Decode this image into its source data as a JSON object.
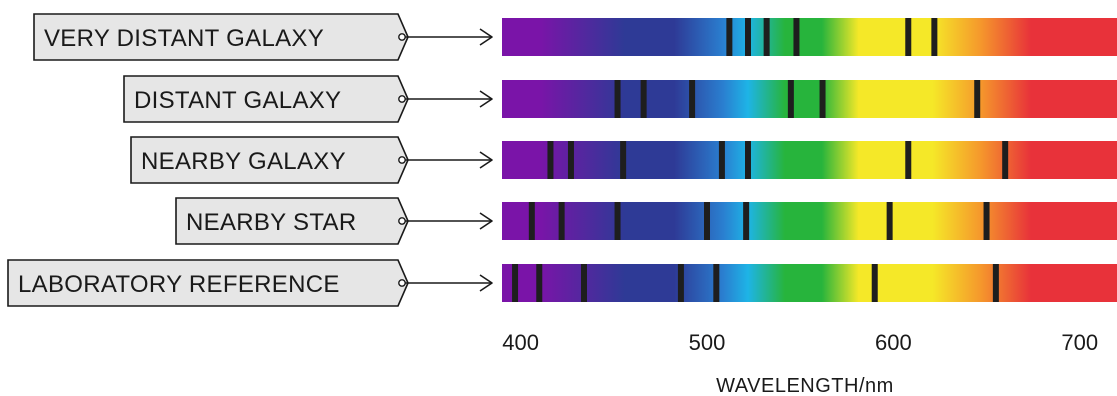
{
  "axis": {
    "label": "WAVELENGTH/nm",
    "ticks": [
      400,
      500,
      600,
      700
    ],
    "range_nm": [
      390,
      720
    ]
  },
  "spectrum_colors": {
    "violet": "#7a14a8",
    "indigo": "#2e3a96",
    "blue": "#2a7fd0",
    "cyan": "#1eb4e6",
    "green": "#27b43c",
    "yellow": "#f5e828",
    "orange": "#f5962c",
    "red": "#e8323a"
  },
  "spectra": [
    {
      "label": "VERY DISTANT GALAXY",
      "lines_nm": [
        512,
        522,
        532,
        548,
        608,
        622
      ]
    },
    {
      "label": "DISTANT GALAXY",
      "lines_nm": [
        452,
        466,
        492,
        545,
        562,
        645
      ]
    },
    {
      "label": "NEARBY GALAXY",
      "lines_nm": [
        416,
        427,
        455,
        508,
        522,
        608,
        660
      ]
    },
    {
      "label": "NEARBY STAR",
      "lines_nm": [
        406,
        422,
        452,
        500,
        521,
        598,
        650
      ]
    },
    {
      "label": "LABORATORY REFERENCE",
      "lines_nm": [
        397,
        410,
        434,
        486,
        505,
        590,
        655
      ]
    }
  ]
}
